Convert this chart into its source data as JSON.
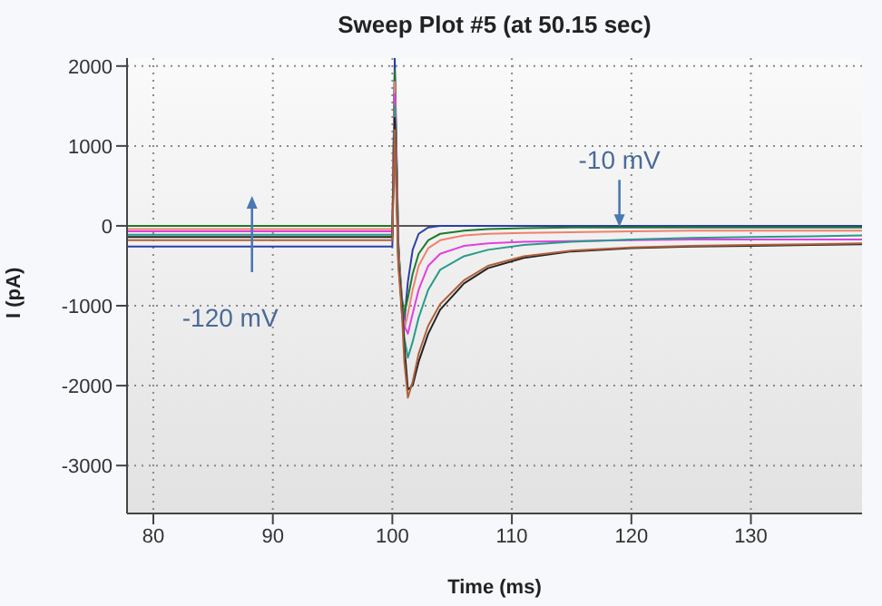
{
  "chart_data": {
    "type": "line",
    "title": "Sweep Plot #5 (at 50.15 sec)",
    "xlabel": "Time (ms)",
    "ylabel": "I (pA)",
    "x": [
      77.8,
      85,
      90,
      95,
      100,
      100.2,
      100.5,
      100.8,
      101,
      101.3,
      101.7,
      102.2,
      103,
      104,
      106,
      108,
      111,
      115,
      120,
      125,
      130,
      135,
      139.3
    ],
    "series": [
      {
        "color": "#2a3fa8",
        "values": [
          -260,
          -260,
          -260,
          -260,
          -260,
          2100,
          -200,
          -1100,
          -1200,
          -700,
          -300,
          -100,
          -20,
          0,
          0,
          0,
          0,
          0,
          0,
          0,
          0,
          0,
          0
        ]
      },
      {
        "color": "#1f7a2a",
        "values": [
          0,
          0,
          0,
          0,
          0,
          1950,
          -250,
          -900,
          -1100,
          -900,
          -600,
          -350,
          -180,
          -100,
          -60,
          -40,
          -30,
          -20,
          -20,
          -20,
          -20,
          -20,
          -20
        ]
      },
      {
        "color": "#f08070",
        "values": [
          -40,
          -40,
          -40,
          -40,
          -40,
          1800,
          -300,
          -1000,
          -1300,
          -1100,
          -800,
          -500,
          -280,
          -180,
          -120,
          -100,
          -90,
          -80,
          -70,
          -60,
          -60,
          -60,
          -60
        ]
      },
      {
        "color": "#e040e0",
        "values": [
          -70,
          -70,
          -70,
          -70,
          -70,
          1650,
          -350,
          -1000,
          -1250,
          -1350,
          -1100,
          -800,
          -500,
          -350,
          -250,
          -220,
          -200,
          -190,
          -180,
          -170,
          -170,
          -170,
          -170
        ]
      },
      {
        "color": "#2a9a8a",
        "values": [
          -110,
          -110,
          -110,
          -110,
          -110,
          1500,
          -400,
          -1000,
          -1400,
          -1650,
          -1450,
          -1150,
          -800,
          -550,
          -380,
          -300,
          -240,
          -200,
          -170,
          -150,
          -140,
          -130,
          -120
        ]
      },
      {
        "color": "#222222",
        "values": [
          -140,
          -140,
          -140,
          -140,
          -140,
          1350,
          -450,
          -1000,
          -1500,
          -2050,
          -2000,
          -1700,
          -1350,
          -1050,
          -720,
          -530,
          -400,
          -320,
          -280,
          -260,
          -250,
          -240,
          -230
        ]
      },
      {
        "color": "#b0603a",
        "values": [
          -180,
          -180,
          -180,
          -180,
          -180,
          1200,
          -500,
          -1100,
          -1700,
          -2150,
          -1950,
          -1600,
          -1250,
          -980,
          -680,
          -500,
          -380,
          -310,
          -270,
          -250,
          -240,
          -230,
          -220
        ]
      }
    ],
    "xlim": [
      77.8,
      139.3
    ],
    "ylim": [
      -3600,
      2100
    ],
    "xticks": [
      80,
      90,
      100,
      110,
      120,
      130
    ],
    "yticks": [
      -3000,
      -2000,
      -1000,
      0,
      1000,
      2000
    ],
    "grid": true,
    "marker": "none",
    "line_style": "solid",
    "ref_lines": [
      {
        "axis": "y",
        "value": 0,
        "color": "#555555"
      }
    ],
    "annotations": [
      {
        "text": "-10 mV",
        "x": 119,
        "y": -60
      },
      "-120 mV"
    ]
  }
}
